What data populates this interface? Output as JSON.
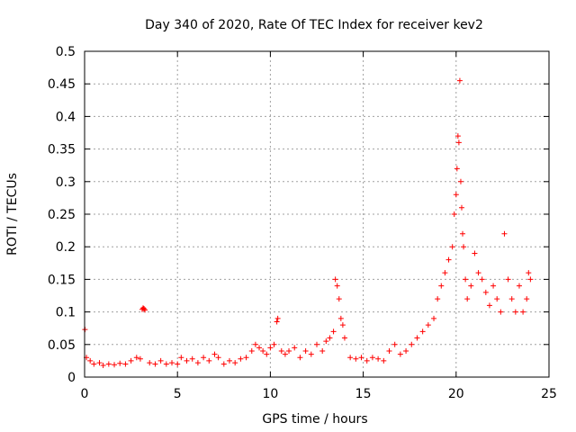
{
  "chart_data": {
    "type": "scatter",
    "title": "Day 340 of 2020, Rate Of TEC Index for receiver kev2",
    "xlabel": "GPS time / hours",
    "ylabel": "ROTI / TECUs",
    "xlim": [
      0,
      25
    ],
    "ylim": [
      0,
      0.5
    ],
    "xticks": [
      "0",
      "5",
      "10",
      "15",
      "20",
      "25"
    ],
    "yticks": [
      "0",
      "0.05",
      "0.1",
      "0.15",
      "0.2",
      "0.25",
      "0.3",
      "0.35",
      "0.4",
      "0.45",
      "0.5"
    ],
    "grid": true,
    "marker": "plus",
    "series_color": "#ff0000",
    "series": [
      {
        "x": [
          0.02,
          0.1,
          0.3,
          0.5,
          0.8,
          1.0,
          1.3,
          1.6,
          1.9,
          2.2,
          2.5,
          2.8,
          3.0,
          3.1,
          3.15,
          3.2,
          3.25,
          3.5,
          3.8,
          4.1,
          4.4,
          4.7,
          5.0,
          5.2,
          5.5,
          5.8,
          6.1,
          6.4,
          6.7,
          7.0,
          7.2,
          7.5,
          7.8,
          8.1,
          8.4,
          8.7,
          9.0,
          9.2,
          9.4,
          9.6,
          9.8,
          10.0,
          10.2,
          10.35,
          10.4,
          10.6,
          10.8,
          11.0,
          11.3,
          11.6,
          11.9,
          12.2,
          12.5,
          12.8,
          13.0,
          13.2,
          13.4,
          13.5,
          13.6,
          13.7,
          13.8,
          13.9,
          14.0,
          14.3,
          14.6,
          14.9,
          15.2,
          15.5,
          15.8,
          16.1,
          16.4,
          16.7,
          17.0,
          17.3,
          17.6,
          17.9,
          18.2,
          18.5,
          18.8,
          19.0,
          19.2,
          19.4,
          19.6,
          19.8,
          19.9,
          20.0,
          20.05,
          20.1,
          20.15,
          20.2,
          20.25,
          20.3,
          20.35,
          20.4,
          20.5,
          20.6,
          20.8,
          21.0,
          21.2,
          21.4,
          21.6,
          21.8,
          22.0,
          22.2,
          22.4,
          22.6,
          22.8,
          23.0,
          23.2,
          23.4,
          23.6,
          23.8,
          23.9,
          24.0
        ],
        "y": [
          0.073,
          0.03,
          0.025,
          0.02,
          0.022,
          0.018,
          0.02,
          0.019,
          0.021,
          0.02,
          0.025,
          0.03,
          0.028,
          0.104,
          0.106,
          0.105,
          0.103,
          0.022,
          0.02,
          0.025,
          0.02,
          0.022,
          0.02,
          0.03,
          0.025,
          0.028,
          0.022,
          0.03,
          0.025,
          0.035,
          0.03,
          0.02,
          0.025,
          0.022,
          0.028,
          0.03,
          0.04,
          0.05,
          0.045,
          0.04,
          0.035,
          0.045,
          0.05,
          0.085,
          0.09,
          0.04,
          0.035,
          0.04,
          0.045,
          0.03,
          0.04,
          0.035,
          0.05,
          0.04,
          0.055,
          0.06,
          0.07,
          0.15,
          0.14,
          0.12,
          0.09,
          0.08,
          0.06,
          0.03,
          0.028,
          0.03,
          0.025,
          0.03,
          0.028,
          0.025,
          0.04,
          0.05,
          0.035,
          0.04,
          0.05,
          0.06,
          0.07,
          0.08,
          0.09,
          0.12,
          0.14,
          0.16,
          0.18,
          0.2,
          0.25,
          0.28,
          0.32,
          0.37,
          0.36,
          0.455,
          0.3,
          0.26,
          0.22,
          0.2,
          0.15,
          0.12,
          0.14,
          0.19,
          0.16,
          0.15,
          0.13,
          0.11,
          0.14,
          0.12,
          0.1,
          0.22,
          0.15,
          0.12,
          0.1,
          0.14,
          0.1,
          0.12,
          0.16,
          0.15
        ]
      }
    ]
  }
}
